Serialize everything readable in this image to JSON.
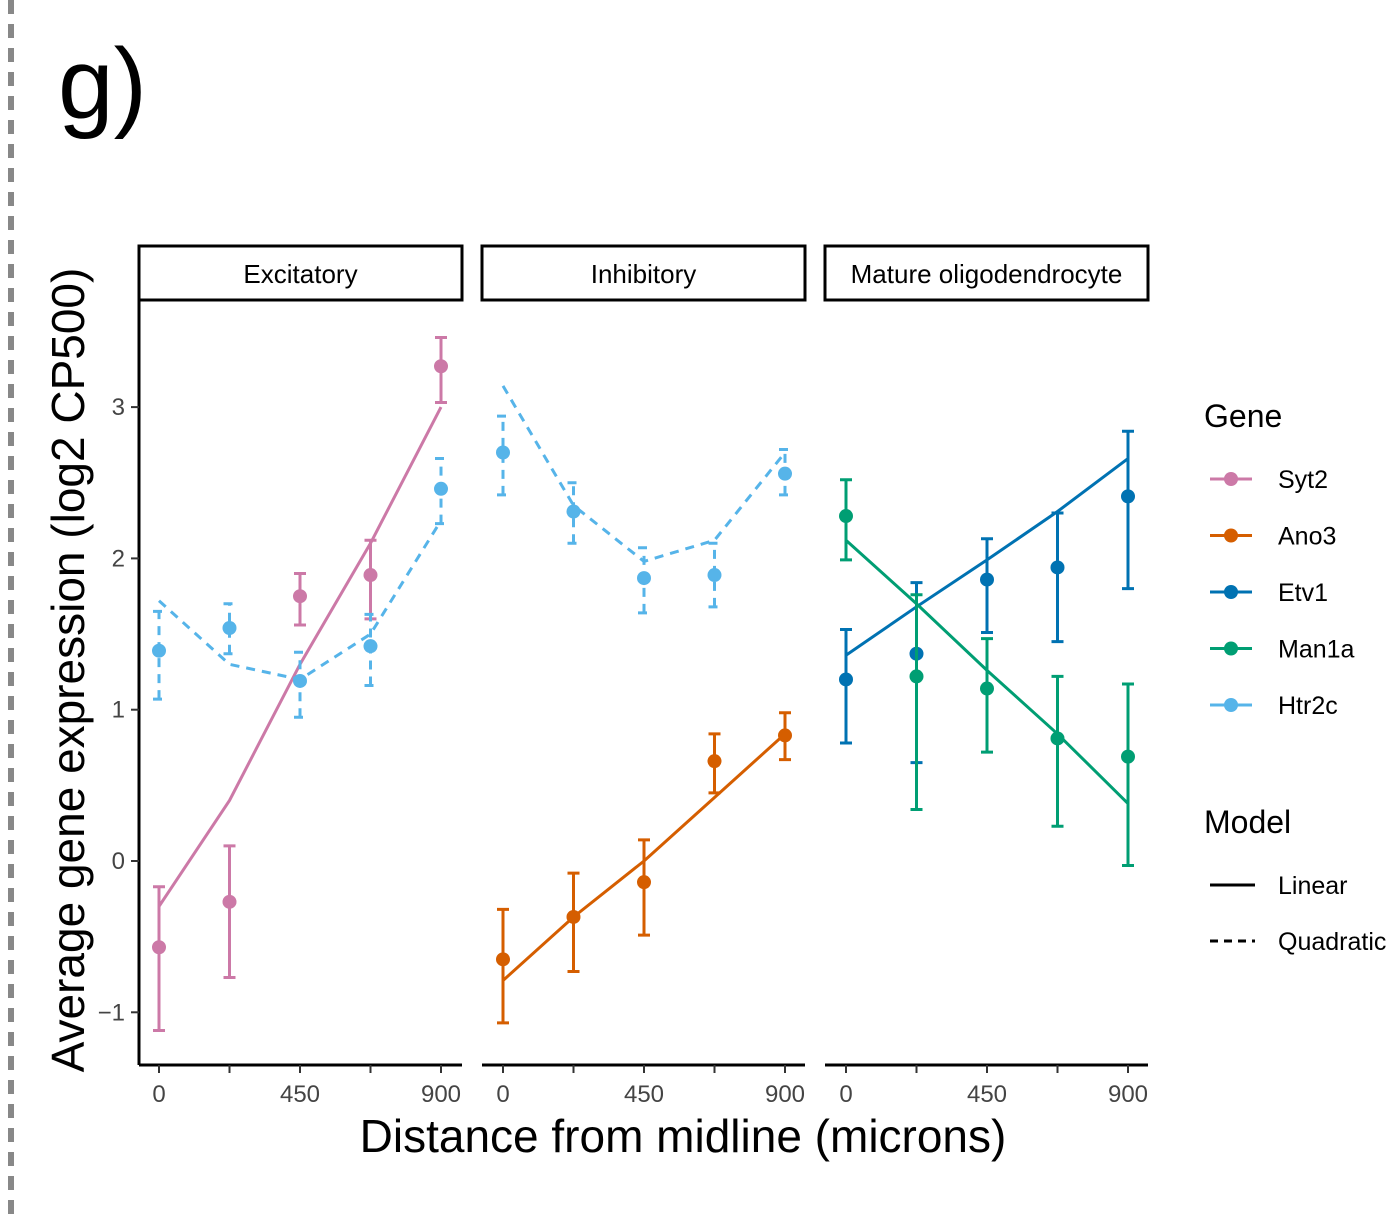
{
  "panel_label": "g)",
  "chart_data": {
    "type": "line",
    "xlabel": "Distance from midline (microns)",
    "ylabel": "Average gene expression (log2 CP500)",
    "ylim": [
      -1.35,
      3.7
    ],
    "xlim": [
      -70,
      970
    ],
    "yticks": [
      -1,
      0,
      1,
      2,
      3
    ],
    "xticks": [
      0,
      225,
      450,
      675,
      900
    ],
    "xtick_labels": [
      "0",
      "",
      "450",
      "",
      "900"
    ],
    "x": [
      0,
      225,
      450,
      675,
      900
    ],
    "colors": {
      "Syt2": "#CC79A7",
      "Ano3": "#D55E00",
      "Etv1": "#0072B2",
      "Man1a": "#009E73",
      "Htr2c": "#56B4E9"
    },
    "panels": [
      {
        "title": "Excitatory",
        "series": [
          {
            "gene": "Syt2",
            "model": "Linear",
            "mean": [
              -0.57,
              -0.27,
              1.75,
              1.89,
              3.27
            ],
            "lo": [
              -1.12,
              -0.77,
              1.56,
              1.6,
              3.03
            ],
            "hi": [
              -0.17,
              0.1,
              1.9,
              2.12,
              3.46
            ],
            "fit": [
              -0.3,
              0.4,
              1.3,
              2.1,
              3.0
            ]
          },
          {
            "gene": "Htr2c",
            "model": "Quadratic",
            "mean": [
              1.39,
              1.54,
              1.19,
              1.42,
              2.46
            ],
            "lo": [
              1.07,
              1.37,
              0.95,
              1.16,
              2.23
            ],
            "hi": [
              1.65,
              1.7,
              1.38,
              1.63,
              2.66
            ],
            "fit": [
              1.72,
              1.3,
              1.2,
              1.5,
              2.25
            ]
          }
        ]
      },
      {
        "title": "Inhibitory",
        "series": [
          {
            "gene": "Htr2c",
            "model": "Quadratic",
            "mean": [
              2.7,
              2.31,
              1.87,
              1.89,
              2.56
            ],
            "lo": [
              2.42,
              2.1,
              1.64,
              1.68,
              2.42
            ],
            "hi": [
              2.94,
              2.5,
              2.07,
              2.1,
              2.72
            ],
            "fit": [
              3.14,
              2.35,
              1.98,
              2.12,
              2.7
            ]
          },
          {
            "gene": "Ano3",
            "model": "Linear",
            "mean": [
              -0.65,
              -0.37,
              -0.14,
              0.66,
              0.83
            ],
            "lo": [
              -1.07,
              -0.73,
              -0.49,
              0.45,
              0.67
            ],
            "hi": [
              -0.32,
              -0.08,
              0.14,
              0.84,
              0.98
            ],
            "fit": [
              -0.79,
              -0.37,
              0.0,
              0.42,
              0.84
            ]
          }
        ]
      },
      {
        "title": "Mature oligodendrocyte",
        "series": [
          {
            "gene": "Etv1",
            "model": "Linear",
            "mean": [
              1.2,
              1.37,
              1.86,
              1.94,
              2.41
            ],
            "lo": [
              0.78,
              0.65,
              1.51,
              1.45,
              1.8
            ],
            "hi": [
              1.53,
              1.84,
              2.13,
              2.3,
              2.84
            ],
            "fit": [
              1.36,
              1.68,
              1.99,
              2.31,
              2.66
            ]
          },
          {
            "gene": "Man1a",
            "model": "Linear",
            "mean": [
              2.28,
              1.22,
              1.14,
              0.81,
              0.69
            ],
            "lo": [
              1.99,
              0.34,
              0.72,
              0.23,
              -0.03
            ],
            "hi": [
              2.52,
              1.76,
              1.47,
              1.22,
              1.17
            ],
            "fit": [
              2.12,
              1.7,
              1.26,
              0.84,
              0.38
            ]
          }
        ]
      }
    ],
    "legend": {
      "placement": "right",
      "gene_title": "Gene",
      "genes": [
        "Syt2",
        "Ano3",
        "Etv1",
        "Man1a",
        "Htr2c"
      ],
      "model_title": "Model",
      "models": [
        "Linear",
        "Quadratic"
      ]
    }
  }
}
